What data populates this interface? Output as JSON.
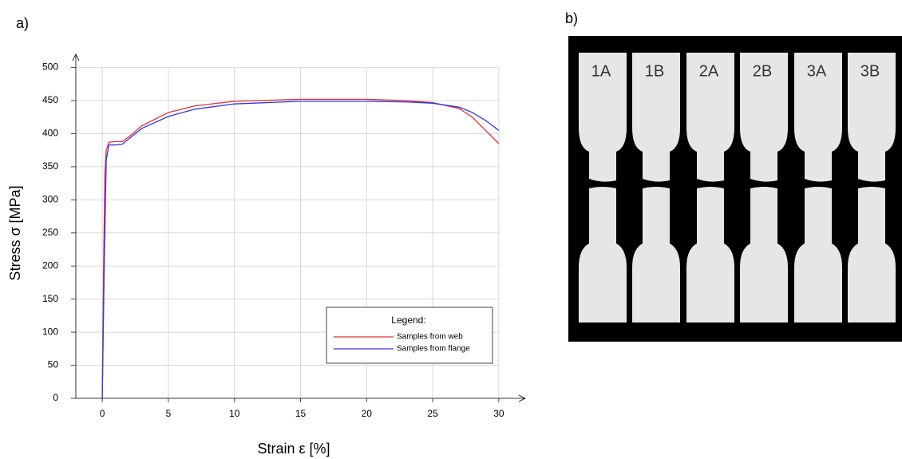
{
  "panels": [
    "a)",
    "b)"
  ],
  "chart_data": {
    "type": "line",
    "xlabel": "Strain ε [%]",
    "ylabel": "Stress σ [MPa]",
    "legend_title": "Legend:",
    "xlim": [
      -2,
      32
    ],
    "ylim": [
      0,
      520
    ],
    "xticks": [
      0,
      5,
      10,
      15,
      20,
      25,
      30
    ],
    "yticks": [
      0,
      50,
      100,
      150,
      200,
      250,
      300,
      350,
      400,
      450,
      500
    ],
    "grid": true,
    "legend": "lower right",
    "series": [
      {
        "name": "Samples from web",
        "color": "#e03030",
        "x": [
          0,
          0.1,
          0.2,
          0.3,
          0.5,
          1,
          1.5,
          2,
          3,
          5,
          7,
          10,
          15,
          20,
          23,
          25,
          27,
          28,
          29,
          30
        ],
        "values": [
          0,
          200,
          340,
          375,
          387,
          388,
          388,
          395,
          412,
          432,
          442,
          449,
          452,
          452,
          450,
          447,
          438,
          425,
          405,
          385
        ]
      },
      {
        "name": "Samples from flange",
        "color": "#3535e0",
        "x": [
          0,
          0.15,
          0.3,
          0.5,
          1,
          1.5,
          2,
          3,
          5,
          7,
          10,
          15,
          20,
          23,
          25,
          27,
          28,
          29,
          30
        ],
        "values": [
          0,
          200,
          360,
          383,
          383,
          384,
          392,
          408,
          426,
          437,
          445,
          449,
          449,
          448,
          446,
          440,
          432,
          420,
          405
        ]
      }
    ]
  },
  "photo": {
    "labels": [
      "1A",
      "1B",
      "2A",
      "2B",
      "3A",
      "3B"
    ]
  }
}
